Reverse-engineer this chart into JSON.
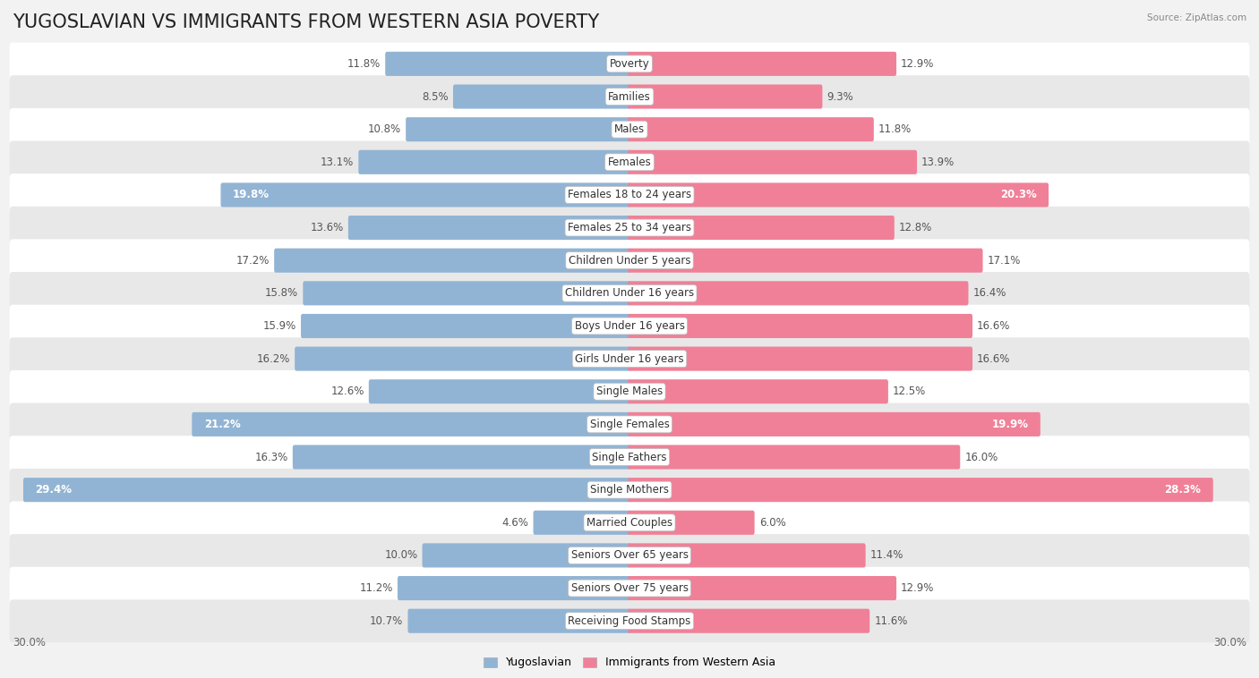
{
  "title": "YUGOSLAVIAN VS IMMIGRANTS FROM WESTERN ASIA POVERTY",
  "source": "Source: ZipAtlas.com",
  "categories": [
    "Poverty",
    "Families",
    "Males",
    "Females",
    "Females 18 to 24 years",
    "Females 25 to 34 years",
    "Children Under 5 years",
    "Children Under 16 years",
    "Boys Under 16 years",
    "Girls Under 16 years",
    "Single Males",
    "Single Females",
    "Single Fathers",
    "Single Mothers",
    "Married Couples",
    "Seniors Over 65 years",
    "Seniors Over 75 years",
    "Receiving Food Stamps"
  ],
  "yugoslavian": [
    11.8,
    8.5,
    10.8,
    13.1,
    19.8,
    13.6,
    17.2,
    15.8,
    15.9,
    16.2,
    12.6,
    21.2,
    16.3,
    29.4,
    4.6,
    10.0,
    11.2,
    10.7
  ],
  "western_asia": [
    12.9,
    9.3,
    11.8,
    13.9,
    20.3,
    12.8,
    17.1,
    16.4,
    16.6,
    16.6,
    12.5,
    19.9,
    16.0,
    28.3,
    6.0,
    11.4,
    12.9,
    11.6
  ],
  "blue_color": "#92b4d4",
  "pink_color": "#f08098",
  "bg_color": "#f2f2f2",
  "row_bg_even": "#ffffff",
  "row_bg_odd": "#e8e8e8",
  "max_val": 30.0,
  "title_fontsize": 15,
  "label_fontsize": 8.5,
  "axis_fontsize": 8.5,
  "high_threshold": 18.5
}
